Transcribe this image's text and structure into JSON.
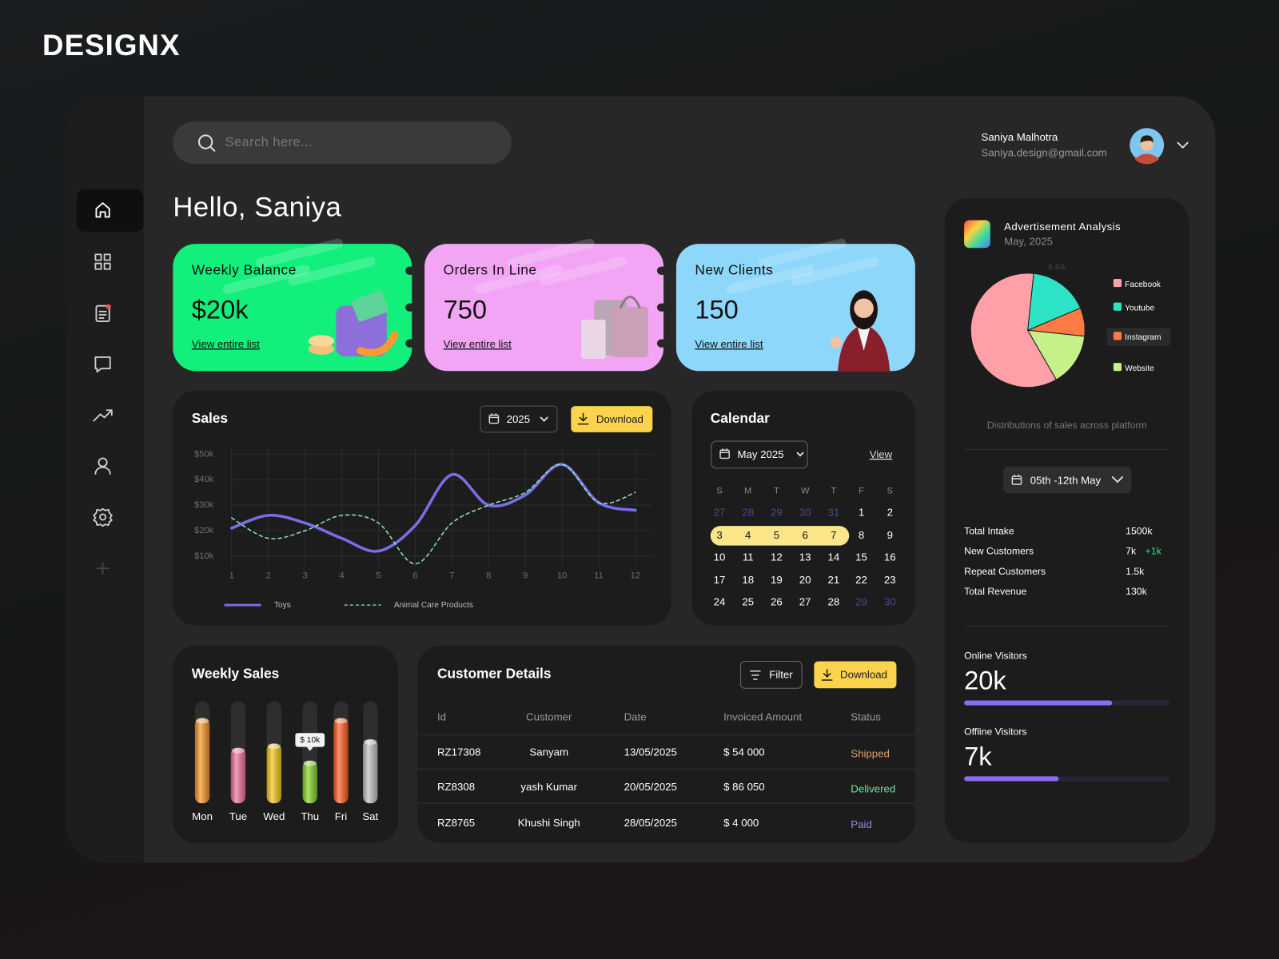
{
  "brand": "DESIGNX",
  "search": {
    "placeholder": "Search here..."
  },
  "user": {
    "name": "Saniya Malhotra",
    "email": "Saniya.design@gmail.com"
  },
  "greeting": "Hello, Saniya",
  "cards": [
    {
      "title": "Weekly Balance",
      "value": "$20k",
      "link": "View entire list",
      "color": "#12ef7b"
    },
    {
      "title": "Orders In Line",
      "value": "750",
      "link": "View entire list",
      "color": "#f2a5f4"
    },
    {
      "title": "New Clients",
      "value": "150",
      "link": "View entire list",
      "color": "#8dd7fb"
    }
  ],
  "sales_controls": {
    "year": "2025",
    "download": "Download"
  },
  "chart_data": [
    {
      "type": "line",
      "title": "Sales",
      "x": [
        1,
        2,
        3,
        4,
        5,
        6,
        7,
        8,
        9,
        10,
        11,
        12
      ],
      "xlim": [
        1,
        12
      ],
      "xticks": [
        1,
        2,
        3,
        4,
        5,
        6,
        7,
        8,
        9,
        10,
        11,
        12
      ],
      "ylim": [
        6000,
        53000
      ],
      "yticks": [
        {
          "value": 10000,
          "label": "$10k"
        },
        {
          "value": 20000,
          "label": "$20k"
        },
        {
          "value": 30000,
          "label": "$30k"
        },
        {
          "value": 40000,
          "label": "$40k"
        },
        {
          "value": 50000,
          "label": "$50k"
        }
      ],
      "grid": true,
      "series": [
        {
          "name": "Toys",
          "color": "#7b6de6",
          "dashed": false,
          "values": [
            21000,
            26000,
            23000,
            17000,
            12000,
            22000,
            42000,
            30000,
            34000,
            46000,
            31000,
            28000
          ]
        },
        {
          "name": "Animal Care Products",
          "color": "#8fe3b8",
          "dashed": true,
          "values": [
            25000,
            17000,
            20000,
            26000,
            23000,
            7000,
            23000,
            30000,
            35000,
            46000,
            31000,
            35000
          ]
        }
      ]
    },
    {
      "type": "bar",
      "title": "Weekly Sales",
      "categories": [
        "Mon",
        "Tue",
        "Wed",
        "Thu",
        "Fri",
        "Sat"
      ],
      "values": [
        20000,
        13000,
        14000,
        10000,
        20000,
        15000
      ],
      "value_labels": [
        null,
        null,
        null,
        "$ 10k",
        null,
        null
      ],
      "colors": [
        "#f7921e",
        "#f06b9a",
        "#f5c518",
        "#7ed321",
        "#ff5a1f",
        "#bdbdbd"
      ],
      "ylim": [
        0,
        24000
      ]
    },
    {
      "type": "pie",
      "title": "Advertisement Analysis",
      "subtitle": "May, 2025",
      "annotation": "$ 40k",
      "caption": "Distributions of sales across platform",
      "categories": [
        "Facebook",
        "Youtube",
        "Instagram",
        "Website"
      ],
      "values": [
        60,
        17,
        8,
        15
      ],
      "colors": [
        "#ff9fa8",
        "#2de3c5",
        "#ff7a45",
        "#c8f08a"
      ]
    }
  ],
  "calendar": {
    "title": "Calendar",
    "month": "May 2025",
    "view": "View",
    "weekdays": [
      "S",
      "M",
      "T",
      "W",
      "T",
      "F",
      "S"
    ],
    "weeks": [
      [
        "27",
        "28",
        "29",
        "30",
        "31",
        "1",
        "2"
      ],
      [
        "3",
        "4",
        "5",
        "6",
        "7",
        "8",
        "9"
      ],
      [
        "10",
        "11",
        "12",
        "13",
        "14",
        "15",
        "16"
      ],
      [
        "17",
        "18",
        "19",
        "20",
        "21",
        "22",
        "23"
      ],
      [
        "24",
        "25",
        "26",
        "27",
        "28",
        "29",
        "30"
      ]
    ]
  },
  "customers": {
    "title": "Customer Details",
    "filter": "Filter",
    "download": "Download",
    "columns": [
      "Id",
      "Customer",
      "Date",
      "Invoiced Amount",
      "Status"
    ],
    "rows": [
      [
        "RZ17308",
        "Sanyam",
        "13/05/2025",
        "$ 54 000",
        "Shipped"
      ],
      [
        "RZ8308",
        "yash Kumar",
        "20/05/2025",
        "$ 86 050",
        "Delivered"
      ],
      [
        "RZ8765",
        "Khushi Singh",
        "28/05/2025",
        "$ 4 000",
        "Paid"
      ]
    ],
    "status_colors": [
      "#d9a36a",
      "#6fe3a2",
      "#8b8cf0"
    ]
  },
  "stats": {
    "range": "05th -12th May",
    "items": [
      {
        "label": "Total Intake",
        "value": "1500k"
      },
      {
        "label": "New Customers",
        "value": "7k",
        "delta": "+1k"
      },
      {
        "label": "Repeat Customers",
        "value": "1.5k"
      },
      {
        "label": "Total Revenue",
        "value": "130k"
      }
    ]
  },
  "visitors": [
    {
      "label": "Online Visitors",
      "value": "20k",
      "bar_percent": 72
    },
    {
      "label": "Offline Visitors",
      "value": "7k",
      "bar_percent": 46
    }
  ]
}
